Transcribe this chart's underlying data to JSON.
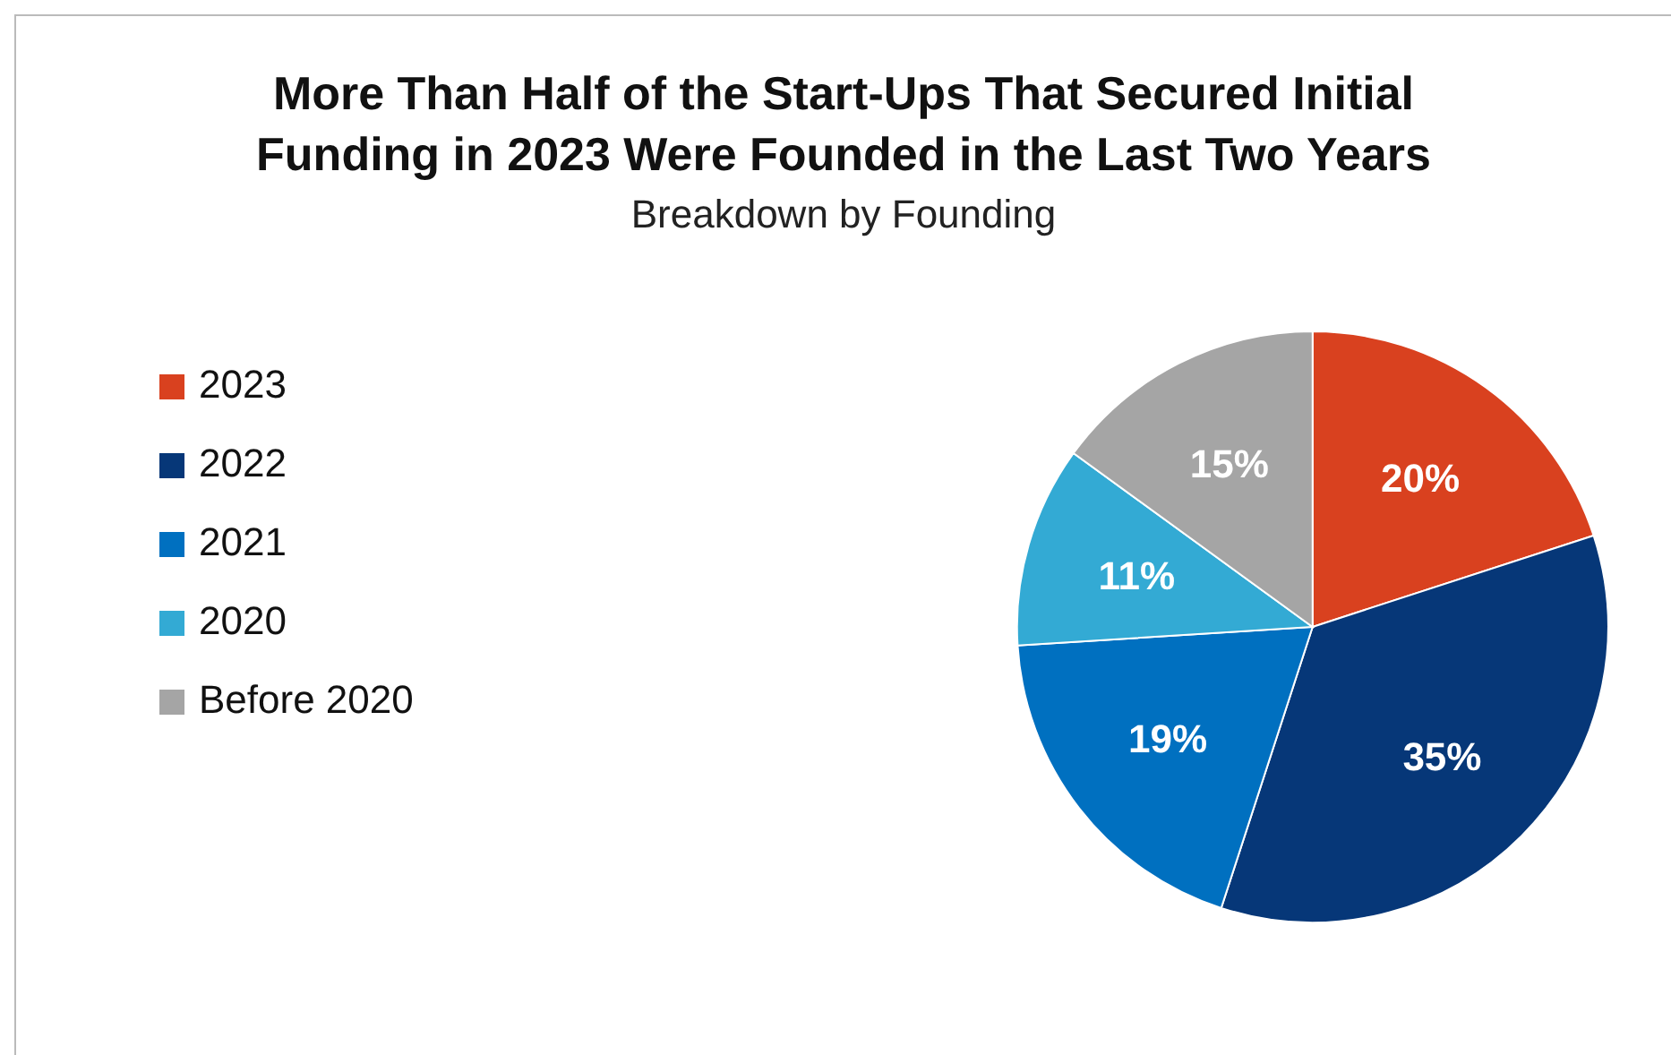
{
  "chart_data": {
    "type": "pie",
    "title": "More Than Half of the Start-Ups That Secured Initial Funding in 2023 Were Founded in the Last Two Years",
    "subtitle": "Breakdown by Founding",
    "categories": [
      "2023",
      "2022",
      "2021",
      "2020",
      "Before 2020"
    ],
    "values": [
      20,
      35,
      19,
      11,
      15
    ],
    "colors": [
      "#d9411f",
      "#063778",
      "#0070c0",
      "#33aad4",
      "#a5a5a5"
    ],
    "value_labels": [
      "20%",
      "35%",
      "19%",
      "11%",
      "15%"
    ],
    "legend": "left"
  }
}
